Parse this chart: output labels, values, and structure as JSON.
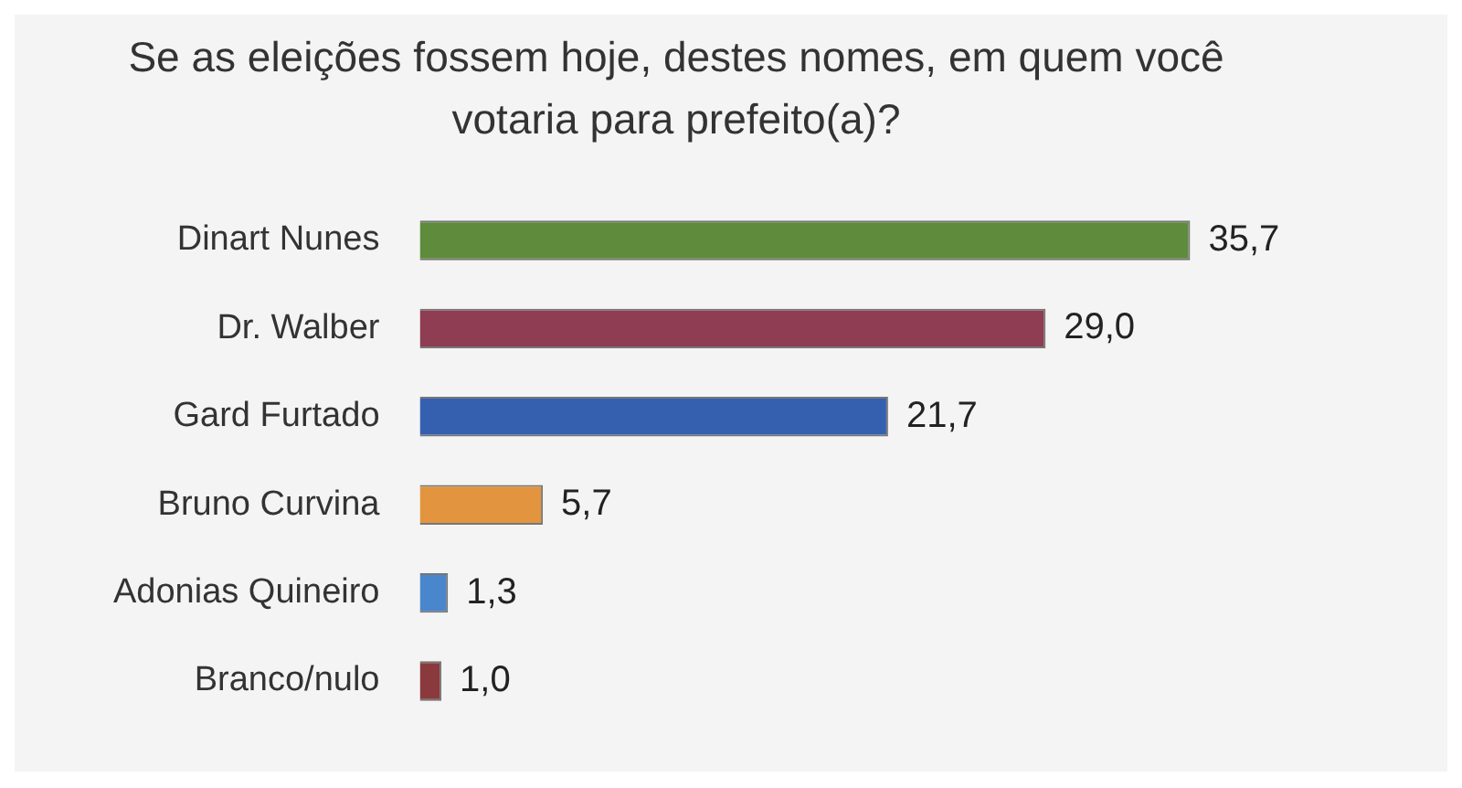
{
  "chart_data": {
    "type": "bar",
    "orientation": "horizontal",
    "title": "Se as eleições fossem hoje, destes nomes, em quem você votaria para prefeito(a)?",
    "categories": [
      "Dinart Nunes",
      "Dr. Walber",
      "Gard Furtado",
      "Bruno Curvina",
      "Adonias Quineiro",
      "Branco/nulo"
    ],
    "values": [
      35.7,
      29.0,
      21.7,
      5.7,
      1.3,
      1.0
    ],
    "value_labels": [
      "35,7",
      "29,0",
      "21,7",
      "5,7",
      "1,3",
      "1,0"
    ],
    "colors": [
      "#5f8b3c",
      "#8e3d52",
      "#3560b0",
      "#e3943e",
      "#4a86cc",
      "#8a3a3c"
    ],
    "legend": false
  }
}
